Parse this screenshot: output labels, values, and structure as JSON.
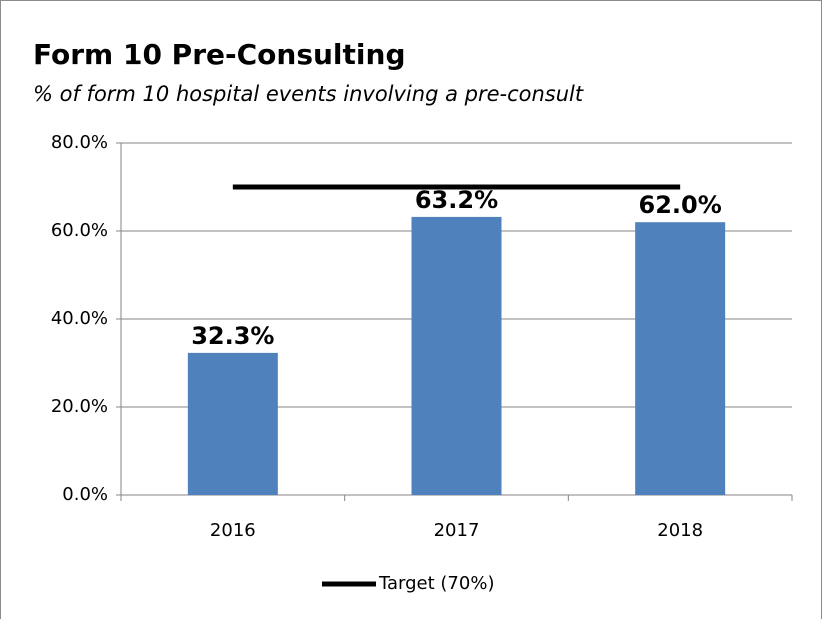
{
  "chart_data": {
    "type": "bar",
    "title": "Form 10 Pre-Consulting",
    "subtitle": "% of form 10 hospital events involving a pre-consult",
    "categories": [
      "2016",
      "2017",
      "2018"
    ],
    "values": [
      32.3,
      63.2,
      62.0
    ],
    "value_labels": [
      "32.3%",
      "63.2%",
      "62.0%"
    ],
    "color": "#4f81bd",
    "series": [
      {
        "name": "Target (70%)",
        "type": "line",
        "color": "#000000",
        "values": [
          70,
          70,
          70
        ]
      }
    ],
    "ylim": [
      0,
      80
    ],
    "yticks": [
      {
        "value": 0,
        "label": "0.0%"
      },
      {
        "value": 20,
        "label": "20.0%"
      },
      {
        "value": 40,
        "label": "40.0%"
      },
      {
        "value": 60,
        "label": "60.0%"
      },
      {
        "value": 80,
        "label": "80.0%"
      }
    ],
    "grid": true,
    "legend": "bottom"
  }
}
